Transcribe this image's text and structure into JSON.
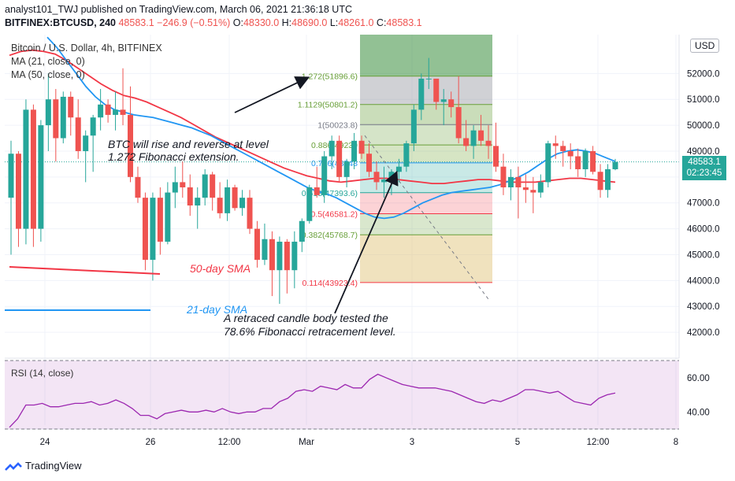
{
  "header": {
    "publisher_line": "analyst101_TWJ published on TradingView.com, March 06, 2021 21:36:18 UTC",
    "symbol": "BITFINEX:BTCUSD, 240",
    "last": "48583.1",
    "change": "−246.9 (−0.51%)",
    "o_label": "O:",
    "o_value": "48330.0",
    "h_label": "H:",
    "h_value": "48690.0",
    "l_label": "L:",
    "l_value": "48261.0",
    "c_label": "C:",
    "c_value": "48583.1"
  },
  "legend": {
    "title": "Bitcoin / U.S. Dollar, 4h, BITFINEX",
    "ma21": "MA (21, close, 0)",
    "ma50": "MA (50, close, 0)"
  },
  "currency": "USD",
  "price_tag": {
    "price": "48583.1",
    "countdown": "02:23:45",
    "color": "#26a69a"
  },
  "brand": "TradingView",
  "annotations": {
    "top_1": "BTC will rise and reverse at level",
    "top_2": "1.272 Fibonacci extension.",
    "bottom_1": "A  retraced candle body tested the",
    "bottom_2": "78.6% Fibonacci retracement level.",
    "sma50": "50-day SMA",
    "sma21": "21-day SMA"
  },
  "colors": {
    "up": "#26a69a",
    "down": "#ef5350",
    "ma21": "#2196f3",
    "ma50": "#f23645",
    "rsi": "#9c27b0",
    "fib_green": "#689f38"
  },
  "chart_data": [
    {
      "type": "candlestick",
      "title": "Bitcoin / U.S. Dollar, 4h, BITFINEX",
      "ylim": [
        41000,
        53500
      ],
      "y_ticks": [
        "42000.0",
        "43000.0",
        "44000.0",
        "45000.0",
        "46000.0",
        "47000.0",
        "48000.0",
        "49000.0",
        "50000.0",
        "51000.0",
        "52000.0"
      ],
      "x_ticks": [
        "24",
        "26",
        "12:00",
        "Mar",
        "3",
        "5",
        "12:00",
        "8"
      ],
      "candles": [
        [
          47200,
          49400,
          45000,
          48900
        ],
        [
          48900,
          49000,
          45300,
          46000
        ],
        [
          46000,
          51000,
          45400,
          50600
        ],
        [
          50600,
          50800,
          45300,
          46000
        ],
        [
          46000,
          50200,
          45500,
          50000
        ],
        [
          50000,
          52000,
          49000,
          51000
        ],
        [
          51000,
          51400,
          48600,
          49500
        ],
        [
          49500,
          51300,
          49300,
          51100
        ],
        [
          51100,
          51300,
          49600,
          50300
        ],
        [
          50300,
          51000,
          48700,
          49000
        ],
        [
          49000,
          49800,
          47800,
          49600
        ],
        [
          49600,
          50400,
          48200,
          50300
        ],
        [
          50300,
          51400,
          49800,
          50800
        ],
        [
          50800,
          51000,
          50100,
          50400
        ],
        [
          50400,
          51300,
          49800,
          50600
        ],
        [
          50600,
          52200,
          50000,
          50400
        ],
        [
          50400,
          51500,
          47800,
          48000
        ],
        [
          48000,
          48400,
          47000,
          47200
        ],
        [
          47200,
          47400,
          44400,
          44800
        ],
        [
          44800,
          47400,
          44000,
          47200
        ],
        [
          47200,
          47600,
          45000,
          45500
        ],
        [
          45500,
          47800,
          45400,
          47400
        ],
        [
          47400,
          48400,
          46800,
          47800
        ],
        [
          47800,
          48600,
          47200,
          47600
        ],
        [
          47600,
          48100,
          46500,
          46900
        ],
        [
          46900,
          47600,
          46000,
          47200
        ],
        [
          47200,
          48300,
          46900,
          48100
        ],
        [
          48100,
          48200,
          46700,
          47200
        ],
        [
          47200,
          47800,
          46400,
          46600
        ],
        [
          46600,
          47900,
          46300,
          47600
        ],
        [
          47600,
          47700,
          46700,
          46800
        ],
        [
          46800,
          47500,
          46500,
          47200
        ],
        [
          47200,
          47500,
          45800,
          46000
        ],
        [
          46000,
          46300,
          44500,
          44800
        ],
        [
          44800,
          46200,
          44600,
          45600
        ],
        [
          45600,
          45900,
          43400,
          44400
        ],
        [
          44400,
          45700,
          43100,
          45500
        ],
        [
          45500,
          45600,
          43500,
          44400
        ],
        [
          44400,
          45900,
          43700,
          45500
        ],
        [
          45500,
          46400,
          45100,
          46300
        ],
        [
          46300,
          47700,
          46200,
          47600
        ],
        [
          47600,
          48400,
          47200,
          47300
        ],
        [
          47300,
          49000,
          47000,
          48800
        ],
        [
          48800,
          49600,
          48300,
          49400
        ],
        [
          49400,
          49600,
          47800,
          48000
        ],
        [
          48000,
          48700,
          47600,
          48600
        ],
        [
          48600,
          49700,
          48300,
          49400
        ],
        [
          49400,
          49600,
          48700,
          48900
        ],
        [
          48900,
          49300,
          48000,
          48200
        ],
        [
          48200,
          48600,
          47500,
          47800
        ],
        [
          47800,
          48400,
          47200,
          47900
        ],
        [
          47900,
          48300,
          47300,
          48200
        ],
        [
          48200,
          48700,
          47800,
          48400
        ],
        [
          48400,
          49400,
          48200,
          49300
        ],
        [
          49300,
          50800,
          49000,
          50600
        ],
        [
          50600,
          52000,
          50200,
          51800
        ],
        [
          51800,
          52600,
          51400,
          51800
        ],
        [
          51800,
          51700,
          50600,
          50900
        ],
        [
          50900,
          51400,
          50000,
          51000
        ],
        [
          51000,
          51300,
          50300,
          50700
        ],
        [
          50700,
          51900,
          49300,
          49500
        ],
        [
          49500,
          50200,
          49000,
          49200
        ],
        [
          49200,
          50000,
          48700,
          49800
        ],
        [
          49800,
          50400,
          49200,
          49400
        ],
        [
          49400,
          50000,
          48700,
          49200
        ],
        [
          49200,
          50100,
          48200,
          48400
        ],
        [
          48400,
          48900,
          47300,
          47600
        ],
        [
          47600,
          48300,
          47100,
          48000
        ],
        [
          48000,
          48400,
          46400,
          47600
        ],
        [
          47600,
          48100,
          47000,
          47500
        ],
        [
          47500,
          48000,
          46600,
          47400
        ],
        [
          47400,
          48100,
          47200,
          47800
        ],
        [
          47800,
          49400,
          47600,
          49300
        ],
        [
          49300,
          49600,
          48700,
          49200
        ],
        [
          49200,
          49400,
          48400,
          49000
        ],
        [
          49000,
          49300,
          48300,
          48800
        ],
        [
          48800,
          49100,
          48000,
          48300
        ],
        [
          48300,
          49100,
          48000,
          49000
        ],
        [
          49000,
          49200,
          48100,
          48200
        ],
        [
          48200,
          48500,
          47200,
          47500
        ],
        [
          47500,
          48500,
          47200,
          48300
        ],
        [
          48300,
          48700,
          48261,
          48583
        ]
      ],
      "ma21": [
        53400,
        53000,
        52500,
        52000,
        51500,
        51100,
        50800,
        50600,
        50500,
        50400,
        50350,
        50300,
        50200,
        50100,
        50000,
        49900,
        49750,
        49600,
        49400,
        49200,
        49000,
        48800,
        48600,
        48400,
        48200,
        48000,
        47800,
        47600,
        47450,
        47350,
        47200,
        47000,
        46800,
        46600,
        46450,
        46400,
        46450,
        46600,
        46800,
        47000,
        47150,
        47300,
        47400,
        47450,
        47500,
        47550,
        47600,
        47700,
        47850,
        48000,
        48200,
        48450,
        48700,
        48900,
        49000,
        49050,
        49000,
        48900,
        48750,
        48600
      ],
      "ma50": [
        52700,
        52850,
        52900,
        52850,
        52750,
        52500,
        52200,
        51900,
        51600,
        51350,
        51150,
        51050,
        50900,
        50700,
        50500,
        50300,
        50050,
        49800,
        49550,
        49350,
        49150,
        48950,
        48750,
        48550,
        48350,
        48200,
        48050,
        47950,
        47850,
        47800,
        47850,
        47900,
        47950,
        47950,
        47900,
        47850,
        47800,
        47750,
        47750,
        47800,
        47850,
        47900,
        47900,
        47850,
        47800,
        47800,
        47800,
        47850,
        47900,
        47950,
        47950,
        47900,
        47850,
        47800
      ],
      "fib_retracement": [
        {
          "ratio": "1.272",
          "price": "51896.6",
          "value": 51896.6
        },
        {
          "ratio": "1.1129",
          "price": "50801.2",
          "value": 50801.2
        },
        {
          "ratio": "1",
          "price": "50023.8",
          "value": 50023.8
        },
        {
          "ratio": "0.886",
          "price": "49239",
          "value": 49239
        },
        {
          "ratio": "0.786",
          "price": "48548",
          "value": 48548
        },
        {
          "ratio": "0.618",
          "price": "47393.6",
          "value": 47393.6
        },
        {
          "ratio": "0.5",
          "price": "46581.2",
          "value": 46581.2
        },
        {
          "ratio": "0.382",
          "price": "45768.7",
          "value": 45768.7
        },
        {
          "ratio": "0.114",
          "price": "43923.4",
          "value": 43923.4
        }
      ],
      "fib_labels": [
        {
          "text": "1.272(51896.6)",
          "color": "#689f38"
        },
        {
          "text": "1.1129(50801.2)",
          "color": "#689f38"
        },
        {
          "text": "1(50023.8)",
          "color": "#787b86"
        },
        {
          "text": "0.886(49239",
          "color": "#689f38"
        },
        {
          "text": "0.786(48548",
          "color": "#2196f3"
        },
        {
          "text": "0.618(47393.6)",
          "color": "#26a69a"
        },
        {
          "text": "0.5(46581.2)",
          "color": "#f23645"
        },
        {
          "text": "0.382(45768.7)",
          "color": "#689f38"
        },
        {
          "text": "0.114(43923.4)",
          "color": "#f23645"
        }
      ]
    },
    {
      "type": "line",
      "title": "RSI (14, close)",
      "ylim": [
        30,
        70
      ],
      "y_ticks": [
        "40.00",
        "60.00"
      ],
      "values": [
        31,
        36,
        44,
        44,
        45,
        43,
        43,
        44,
        45,
        45,
        46,
        44,
        45,
        47,
        45,
        42,
        38,
        38,
        36,
        39,
        40,
        41,
        40,
        40,
        41,
        40,
        42,
        40,
        39,
        40,
        40,
        42,
        42,
        46,
        48,
        52,
        53,
        52,
        55,
        54,
        53,
        56,
        54,
        54,
        59,
        62,
        60,
        58,
        56,
        55,
        54,
        54,
        54,
        53,
        52,
        50,
        48,
        46,
        45,
        47,
        46,
        48,
        50,
        53,
        53,
        52,
        51,
        52,
        49,
        46,
        45,
        44,
        48,
        50,
        51
      ]
    }
  ]
}
